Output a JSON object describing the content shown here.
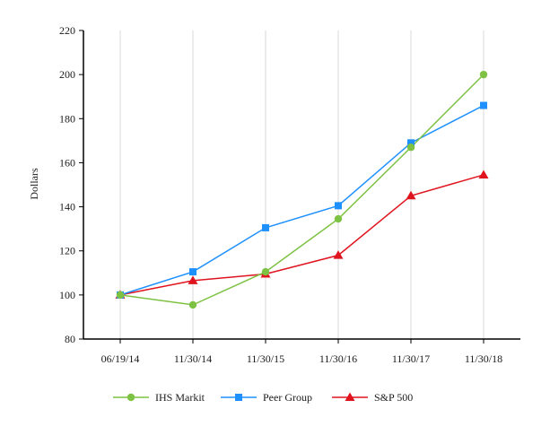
{
  "chart_data": {
    "type": "line",
    "title": "",
    "xlabel": "",
    "ylabel": "Dollars",
    "categories": [
      "06/19/14",
      "11/30/14",
      "11/30/15",
      "11/30/16",
      "11/30/17",
      "11/30/18"
    ],
    "ylim": [
      80,
      220
    ],
    "yticks": [
      80,
      100,
      120,
      140,
      160,
      180,
      200,
      220
    ],
    "grid": "vertical",
    "legend_position": "bottom",
    "series": [
      {
        "name": "IHS Markit",
        "color": "#7dc242",
        "marker": "circle",
        "values": [
          100,
          95.5,
          110.5,
          134.5,
          167,
          200
        ]
      },
      {
        "name": "Peer Group",
        "color": "#1e90ff",
        "marker": "square",
        "values": [
          100,
          110.5,
          130.5,
          140.5,
          169,
          186
        ]
      },
      {
        "name": "S&P 500",
        "color": "#e0141e",
        "marker": "triangle",
        "values": [
          100,
          106.5,
          109.5,
          118,
          145,
          154.5
        ]
      }
    ]
  }
}
